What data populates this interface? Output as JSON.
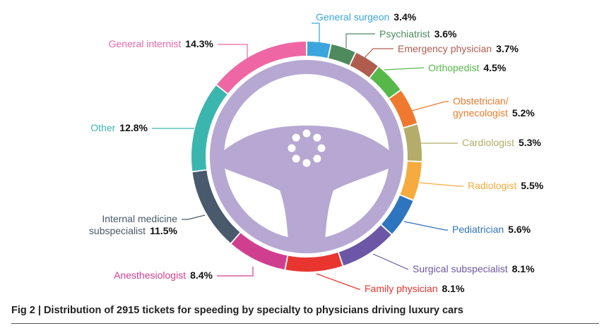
{
  "chart_data": {
    "type": "pie",
    "subtype": "donut",
    "title": "Fig 2 | Distribution of 2915 tickets for speeding by specialty to physicians driving luxury cars",
    "slices": [
      {
        "name": "General surgeon",
        "value": 3.4,
        "label": "3.4%",
        "color": "#3aa6dd",
        "lines": [
          "General surgeon"
        ]
      },
      {
        "name": "Psychiatrist",
        "value": 3.6,
        "label": "3.6%",
        "color": "#4f8a5f",
        "lines": [
          "Psychiatrist"
        ]
      },
      {
        "name": "Emergency physician",
        "value": 3.7,
        "label": "3.7%",
        "color": "#b05c4f",
        "lines": [
          "Emergency physician"
        ]
      },
      {
        "name": "Orthopedist",
        "value": 4.5,
        "label": "4.5%",
        "color": "#55b848",
        "lines": [
          "Orthopedist"
        ]
      },
      {
        "name": "Obstetrician/gynecologist",
        "value": 5.2,
        "label": "5.2%",
        "color": "#ef7a2f",
        "lines": [
          "Obstetrician/",
          "gynecologist"
        ]
      },
      {
        "name": "Cardiologist",
        "value": 5.3,
        "label": "5.3%",
        "color": "#b4ac6a",
        "lines": [
          "Cardiologist"
        ]
      },
      {
        "name": "Radiologist",
        "value": 5.5,
        "label": "5.5%",
        "color": "#f6ab3e",
        "lines": [
          "Radiologist"
        ]
      },
      {
        "name": "Pediatrician",
        "value": 5.6,
        "label": "5.6%",
        "color": "#2f74bf",
        "lines": [
          "Pediatrician"
        ]
      },
      {
        "name": "Surgical subspecialist",
        "value": 8.1,
        "label": "8.1%",
        "color": "#6c56a6",
        "lines": [
          "Surgical subspecialist"
        ]
      },
      {
        "name": "Family physician",
        "value": 8.1,
        "label": "8.1%",
        "color": "#e8352f",
        "lines": [
          "Family physician"
        ]
      },
      {
        "name": "Anesthesiologist",
        "value": 8.4,
        "label": "8.4%",
        "color": "#d03f8f",
        "lines": [
          "Anesthesiologist"
        ]
      },
      {
        "name": "Internal medicine subspecialist",
        "value": 11.5,
        "label": "11.5%",
        "color": "#485a6b",
        "lines": [
          "Internal medicine",
          "subspecialist"
        ]
      },
      {
        "name": "Other",
        "value": 12.8,
        "label": "12.8%",
        "color": "#3bb6ae",
        "lines": [
          "Other"
        ]
      },
      {
        "name": "General internist",
        "value": 14.3,
        "label": "14.3%",
        "color": "#ee67a4",
        "lines": [
          "General internist"
        ]
      }
    ],
    "center_graphic": "steering-wheel-icon",
    "legend": "none"
  },
  "caption": "Fig 2 | Distribution of 2915 tickets for speeding by specialty to physicians driving luxury cars",
  "colors": {
    "wheel": "#b6a8d2",
    "hub": "#ffffff"
  }
}
